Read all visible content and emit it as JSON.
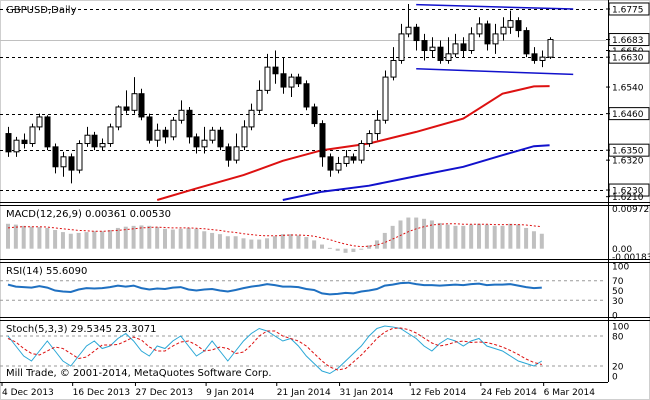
{
  "chart_data": [
    {
      "type": "candlestick",
      "title": "GBPUSD,Daily",
      "yaxis_ticks": [
        "1.6775",
        "1.6683",
        "1.6650",
        "1.6630",
        "1.6540",
        "1.6460",
        "1.6350",
        "1.6320",
        "1.6230",
        "1.6210"
      ],
      "ylim": [
        1.62,
        1.679
      ],
      "level_lines": [
        {
          "label": "1.6775",
          "value": 1.6775
        },
        {
          "label": "1.6630",
          "value": 1.663
        },
        {
          "label": "1.6460",
          "value": 1.646
        },
        {
          "label": "1.6350",
          "value": 1.635
        },
        {
          "label": "1.6230",
          "value": 1.623
        }
      ],
      "current_price": "1.6683",
      "candles": [
        [
          1.64,
          1.6345,
          1.642,
          1.633
        ],
        [
          1.6345,
          1.638,
          1.639,
          1.633
        ],
        [
          1.638,
          1.637,
          1.64,
          1.6355
        ],
        [
          1.637,
          1.642,
          1.643,
          1.636
        ],
        [
          1.642,
          1.645,
          1.646,
          1.641
        ],
        [
          1.645,
          1.636,
          1.6455,
          1.635
        ],
        [
          1.636,
          1.63,
          1.637,
          1.628
        ],
        [
          1.63,
          1.633,
          1.6345,
          1.627
        ],
        [
          1.633,
          1.629,
          1.634,
          1.625
        ],
        [
          1.629,
          1.637,
          1.638,
          1.628
        ],
        [
          1.637,
          1.6395,
          1.642,
          1.636
        ],
        [
          1.6395,
          1.636,
          1.6405,
          1.635
        ],
        [
          1.636,
          1.637,
          1.6385,
          1.635
        ],
        [
          1.637,
          1.642,
          1.643,
          1.636
        ],
        [
          1.642,
          1.648,
          1.6485,
          1.641
        ],
        [
          1.648,
          1.647,
          1.653,
          1.646
        ],
        [
          1.647,
          1.652,
          1.657,
          1.646
        ],
        [
          1.652,
          1.645,
          1.6535,
          1.644
        ],
        [
          1.645,
          1.638,
          1.646,
          1.637
        ],
        [
          1.638,
          1.641,
          1.643,
          1.636
        ],
        [
          1.641,
          1.639,
          1.642,
          1.637
        ],
        [
          1.639,
          1.644,
          1.645,
          1.638
        ],
        [
          1.644,
          1.647,
          1.65,
          1.643
        ],
        [
          1.647,
          1.639,
          1.648,
          1.637
        ],
        [
          1.639,
          1.636,
          1.64,
          1.634
        ],
        [
          1.636,
          1.638,
          1.642,
          1.634
        ],
        [
          1.638,
          1.641,
          1.642,
          1.637
        ],
        [
          1.641,
          1.636,
          1.642,
          1.635
        ],
        [
          1.636,
          1.632,
          1.637,
          1.63
        ],
        [
          1.632,
          1.636,
          1.64,
          1.631
        ],
        [
          1.636,
          1.642,
          1.644,
          1.635
        ],
        [
          1.642,
          1.647,
          1.649,
          1.641
        ],
        [
          1.647,
          1.653,
          1.656,
          1.646
        ],
        [
          1.653,
          1.66,
          1.664,
          1.652
        ],
        [
          1.66,
          1.658,
          1.665,
          1.655
        ],
        [
          1.658,
          1.654,
          1.663,
          1.652
        ],
        [
          1.654,
          1.657,
          1.658,
          1.651
        ],
        [
          1.657,
          1.655,
          1.658,
          1.654
        ],
        [
          1.655,
          1.648,
          1.656,
          1.647
        ],
        [
          1.648,
          1.643,
          1.649,
          1.642
        ],
        [
          1.643,
          1.633,
          1.644,
          1.63
        ],
        [
          1.633,
          1.629,
          1.634,
          1.627
        ],
        [
          1.629,
          1.631,
          1.633,
          1.628
        ],
        [
          1.631,
          1.633,
          1.635,
          1.63
        ],
        [
          1.633,
          1.632,
          1.634,
          1.631
        ],
        [
          1.632,
          1.637,
          1.638,
          1.631
        ],
        [
          1.637,
          1.64,
          1.641,
          1.636
        ],
        [
          1.64,
          1.644,
          1.647,
          1.638
        ],
        [
          1.644,
          1.657,
          1.659,
          1.643
        ],
        [
          1.657,
          1.662,
          1.666,
          1.656
        ],
        [
          1.662,
          1.67,
          1.673,
          1.661
        ],
        [
          1.67,
          1.672,
          1.679,
          1.669
        ],
        [
          1.672,
          1.668,
          1.673,
          1.665
        ],
        [
          1.668,
          1.665,
          1.67,
          1.662
        ],
        [
          1.665,
          1.666,
          1.669,
          1.663
        ],
        [
          1.666,
          1.662,
          1.668,
          1.661
        ],
        [
          1.662,
          1.664,
          1.669,
          1.661
        ],
        [
          1.664,
          1.667,
          1.67,
          1.663
        ],
        [
          1.667,
          1.665,
          1.669,
          1.663
        ],
        [
          1.665,
          1.67,
          1.672,
          1.664
        ],
        [
          1.67,
          1.673,
          1.675,
          1.669
        ],
        [
          1.673,
          1.667,
          1.674,
          1.665
        ],
        [
          1.667,
          1.67,
          1.673,
          1.664
        ],
        [
          1.67,
          1.672,
          1.675,
          1.668
        ],
        [
          1.672,
          1.674,
          1.677,
          1.67
        ],
        [
          1.674,
          1.671,
          1.675,
          1.669
        ],
        [
          1.671,
          1.664,
          1.672,
          1.663
        ],
        [
          1.664,
          1.662,
          1.666,
          1.661
        ],
        [
          1.662,
          1.663,
          1.665,
          1.66
        ],
        [
          1.663,
          1.6683,
          1.669,
          1.6625
        ]
      ],
      "moving_averages": [
        {
          "color": "#dd1111",
          "values": [
            [
              19,
              1.62
            ],
            [
              24,
              1.6235
            ],
            [
              30,
              1.6275
            ],
            [
              35,
              1.6318
            ],
            [
              40,
              1.635
            ],
            [
              46,
              1.637
            ],
            [
              52,
              1.6405
            ],
            [
              58,
              1.6445
            ],
            [
              63,
              1.652
            ],
            [
              67,
              1.6542
            ],
            [
              69,
              1.6543
            ]
          ]
        },
        {
          "color": "#1111cc",
          "values": [
            [
              35,
              1.62
            ],
            [
              40,
              1.6225
            ],
            [
              46,
              1.6243
            ],
            [
              52,
              1.6272
            ],
            [
              58,
              1.63
            ],
            [
              63,
              1.6335
            ],
            [
              67,
              1.6362
            ],
            [
              69,
              1.6365
            ]
          ]
        }
      ],
      "trend_lines": [
        {
          "color": "#1111cc",
          "from": [
            52,
            1.6788
          ],
          "to": [
            72,
            1.6775
          ]
        },
        {
          "color": "#1111cc",
          "from": [
            52,
            1.6595
          ],
          "to": [
            72,
            1.6578
          ]
        }
      ]
    },
    {
      "type": "bar",
      "title": "MACD(12,26,9) 0.00361 0.00530",
      "yaxis_ticks": [
        "0.00972",
        "0.00",
        "-0.00183"
      ],
      "ylim": [
        -0.002,
        0.0098
      ],
      "histogram": [
        0.006,
        0.0058,
        0.0055,
        0.0053,
        0.0052,
        0.005,
        0.0045,
        0.004,
        0.0036,
        0.0038,
        0.004,
        0.0042,
        0.0042,
        0.0045,
        0.005,
        0.0053,
        0.0055,
        0.0056,
        0.0055,
        0.0052,
        0.0048,
        0.0046,
        0.0048,
        0.005,
        0.0048,
        0.0042,
        0.0038,
        0.0035,
        0.003,
        0.003,
        0.0025,
        0.0022,
        0.0022,
        0.0025,
        0.003,
        0.0035,
        0.0035,
        0.0032,
        0.0028,
        0.002,
        0.001,
        0.0002,
        -0.0005,
        -0.001,
        -0.0008,
        -0.0002,
        0.0008,
        0.002,
        0.0038,
        0.0055,
        0.0068,
        0.0075,
        0.0075,
        0.0072,
        0.0068,
        0.0062,
        0.0058,
        0.0055,
        0.0055,
        0.0058,
        0.006,
        0.0058,
        0.0055,
        0.0055,
        0.006,
        0.0058,
        0.005,
        0.0042,
        0.0036
      ],
      "signal": [
        0.005,
        0.0052,
        0.0053,
        0.0053,
        0.0053,
        0.0052,
        0.005,
        0.0048,
        0.0046,
        0.0044,
        0.0043,
        0.0042,
        0.0042,
        0.0043,
        0.0044,
        0.0046,
        0.0048,
        0.005,
        0.0051,
        0.0052,
        0.0051,
        0.005,
        0.005,
        0.005,
        0.0049,
        0.0048,
        0.0046,
        0.0044,
        0.0041,
        0.0039,
        0.0036,
        0.0034,
        0.0032,
        0.0031,
        0.0031,
        0.0032,
        0.0033,
        0.0033,
        0.0032,
        0.003,
        0.0026,
        0.0022,
        0.0016,
        0.0011,
        0.0007,
        0.0005,
        0.0006,
        0.0009,
        0.0015,
        0.0023,
        0.0032,
        0.0041,
        0.0048,
        0.0053,
        0.0057,
        0.0059,
        0.006,
        0.006,
        0.0059,
        0.0059,
        0.0059,
        0.0059,
        0.0058,
        0.0058,
        0.0058,
        0.0058,
        0.0057,
        0.0055,
        0.0053
      ]
    },
    {
      "type": "line",
      "title": "RSI(14) 55.6090",
      "yaxis_ticks": [
        "100",
        "70",
        "50",
        "30",
        "0"
      ],
      "ylim": [
        0,
        100
      ],
      "levels": [
        70,
        30
      ],
      "values": [
        62,
        58,
        57,
        56,
        59,
        56,
        50,
        48,
        47,
        52,
        55,
        54,
        55,
        57,
        60,
        58,
        60,
        55,
        52,
        54,
        53,
        56,
        57,
        52,
        50,
        52,
        53,
        50,
        48,
        51,
        55,
        58,
        60,
        63,
        61,
        58,
        58,
        57,
        53,
        51,
        44,
        42,
        43,
        45,
        44,
        48,
        50,
        53,
        60,
        62,
        65,
        66,
        63,
        61,
        61,
        60,
        61,
        62,
        61,
        63,
        64,
        61,
        62,
        62,
        63,
        60,
        57,
        55,
        56
      ]
    },
    {
      "type": "line",
      "title": "Stoch(5,3,3) 29.5345 23.3071",
      "yaxis_ticks": [
        "100",
        "80",
        "20",
        "0"
      ],
      "ylim": [
        0,
        100
      ],
      "levels": [
        80,
        20
      ],
      "series": [
        {
          "values": [
            80,
            60,
            40,
            30,
            50,
            70,
            50,
            30,
            20,
            40,
            60,
            70,
            55,
            60,
            75,
            85,
            70,
            50,
            40,
            60,
            55,
            70,
            80,
            60,
            40,
            50,
            70,
            50,
            30,
            50,
            70,
            85,
            95,
            90,
            80,
            70,
            75,
            60,
            40,
            25,
            10,
            5,
            15,
            30,
            45,
            60,
            80,
            95,
            100,
            98,
            95,
            85,
            75,
            60,
            50,
            65,
            75,
            70,
            60,
            70,
            75,
            60,
            55,
            50,
            40,
            30,
            25,
            20,
            30
          ]
        },
        {
          "values": [
            75,
            68,
            55,
            45,
            42,
            50,
            58,
            55,
            45,
            35,
            38,
            50,
            62,
            62,
            63,
            70,
            78,
            72,
            58,
            50,
            50,
            60,
            68,
            70,
            62,
            50,
            52,
            58,
            55,
            45,
            48,
            62,
            80,
            90,
            90,
            80,
            75,
            70,
            60,
            45,
            30,
            18,
            12,
            15,
            28,
            42,
            58,
            75,
            88,
            95,
            96,
            93,
            86,
            76,
            66,
            60,
            63,
            68,
            70,
            67,
            68,
            67,
            63,
            58,
            51,
            43,
            34,
            27,
            23
          ]
        }
      ]
    }
  ],
  "x_axis_labels": [
    "4 Dec 2013",
    "16 Dec 2013",
    "27 Dec 2013",
    "9 Jan 2014",
    "21 Jan 2014",
    "31 Jan 2014",
    "12 Feb 2014",
    "24 Feb 2014",
    "6 Mar 2014"
  ],
  "footer_text": "Mill Trade, © 2001-2014, MetaQuotes Software Corp."
}
